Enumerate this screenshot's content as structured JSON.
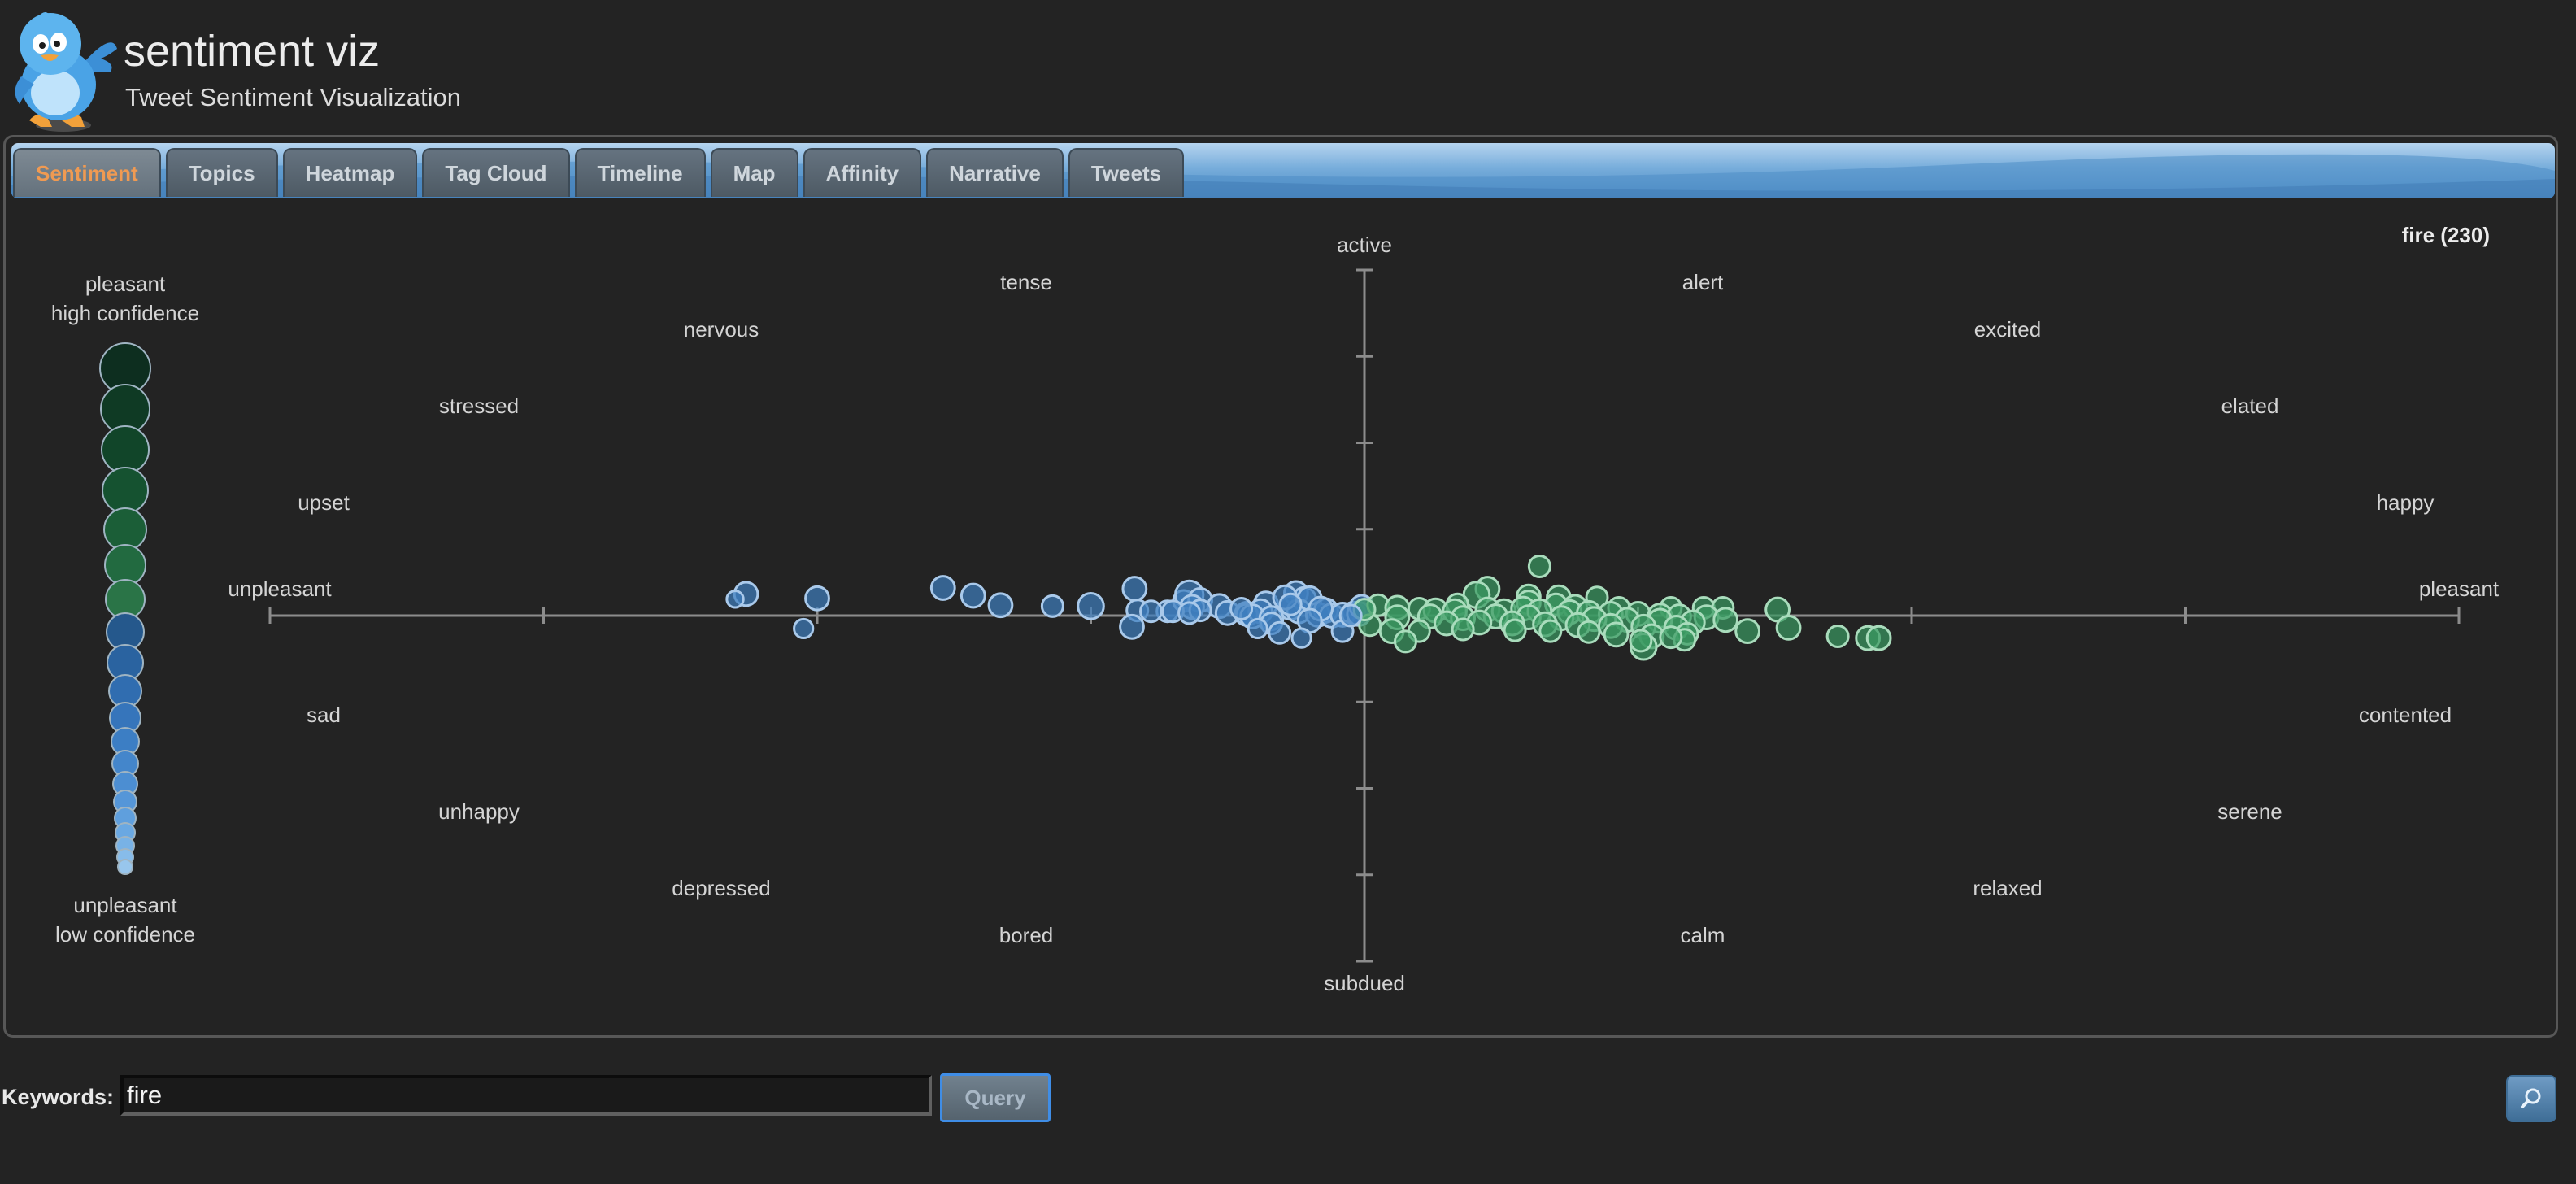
{
  "app": {
    "title": "sentiment viz",
    "subtitle": "Tweet Sentiment Visualization",
    "logo_icon": "twitter-bird-icon"
  },
  "tabs": [
    {
      "label": "Sentiment",
      "active": true
    },
    {
      "label": "Topics",
      "active": false
    },
    {
      "label": "Heatmap",
      "active": false
    },
    {
      "label": "Tag Cloud",
      "active": false
    },
    {
      "label": "Timeline",
      "active": false
    },
    {
      "label": "Map",
      "active": false
    },
    {
      "label": "Affinity",
      "active": false
    },
    {
      "label": "Narrative",
      "active": false
    },
    {
      "label": "Tweets",
      "active": false
    }
  ],
  "result_label": "fire (230)",
  "legend": {
    "top_line1": "pleasant",
    "top_line2": "high confidence",
    "bottom_line1": "unpleasant",
    "bottom_line2": "low confidence"
  },
  "circumplex": {
    "axis_top": "active",
    "axis_bottom": "subdued",
    "axis_left": "unpleasant",
    "axis_right": "pleasant",
    "terms": {
      "tense": "tense",
      "nervous": "nervous",
      "stressed": "stressed",
      "upset": "upset",
      "alert": "alert",
      "excited": "excited",
      "elated": "elated",
      "happy": "happy",
      "sad": "sad",
      "unhappy": "unhappy",
      "depressed": "depressed",
      "bored": "bored",
      "contented": "contented",
      "serene": "serene",
      "relaxed": "relaxed",
      "calm": "calm"
    }
  },
  "colors": {
    "background": "#232323",
    "unpleasant": "#3f7fbf",
    "pleasant": "#3a9a62",
    "active_tab_text": "#f09a52",
    "axis": "#8c8c8c"
  },
  "chart_data": {
    "type": "scatter",
    "title": "",
    "xlim": [
      1,
      9
    ],
    "ylim": [
      1,
      9
    ],
    "x_label_low": "unpleasant",
    "x_label_high": "pleasant",
    "y_label_low": "subdued",
    "y_label_high": "active",
    "count": 230,
    "note": "points sampled at visible resolution; pleasure (x) vs arousal (y), point size = confidence",
    "points": [
      {
        "x": 2.74,
        "y": 5.25,
        "size": 0.6
      },
      {
        "x": 2.7,
        "y": 5.19,
        "size": 0.3
      },
      {
        "x": 3.0,
        "y": 5.2,
        "size": 0.6
      },
      {
        "x": 3.46,
        "y": 5.32,
        "size": 0.6
      },
      {
        "x": 3.57,
        "y": 5.23,
        "size": 0.6
      },
      {
        "x": 3.67,
        "y": 5.12,
        "size": 0.6
      },
      {
        "x": 3.86,
        "y": 5.11,
        "size": 0.5
      },
      {
        "x": 4.0,
        "y": 5.11,
        "size": 0.7
      },
      {
        "x": 4.16,
        "y": 5.31,
        "size": 0.6
      },
      {
        "x": 4.17,
        "y": 5.06,
        "size": 0.5
      },
      {
        "x": 4.28,
        "y": 5.05,
        "size": 0.5
      },
      {
        "x": 4.34,
        "y": 5.17,
        "size": 0.5
      },
      {
        "x": 4.36,
        "y": 5.24,
        "size": 0.8
      },
      {
        "x": 4.4,
        "y": 5.18,
        "size": 0.6
      },
      {
        "x": 4.37,
        "y": 5.1,
        "size": 0.6
      },
      {
        "x": 4.47,
        "y": 5.11,
        "size": 0.6
      },
      {
        "x": 4.5,
        "y": 5.03,
        "size": 0.6
      },
      {
        "x": 4.57,
        "y": 5.02,
        "size": 0.6
      },
      {
        "x": 4.64,
        "y": 5.14,
        "size": 0.6
      },
      {
        "x": 4.57,
        "y": 5.01,
        "size": 0.5
      },
      {
        "x": 4.62,
        "y": 5.05,
        "size": 0.6
      },
      {
        "x": 4.59,
        "y": 4.99,
        "size": 0.6
      },
      {
        "x": 4.75,
        "y": 5.26,
        "size": 0.6
      },
      {
        "x": 4.78,
        "y": 5.19,
        "size": 0.6
      },
      {
        "x": 4.73,
        "y": 5.09,
        "size": 0.6
      },
      {
        "x": 4.76,
        "y": 5.05,
        "size": 0.6
      },
      {
        "x": 4.8,
        "y": 5.2,
        "size": 0.6
      },
      {
        "x": 4.83,
        "y": 5.01,
        "size": 0.6
      },
      {
        "x": 4.86,
        "y": 5.06,
        "size": 0.6
      },
      {
        "x": 4.88,
        "y": 5.0,
        "size": 0.6
      },
      {
        "x": 4.92,
        "y": 5.01,
        "size": 0.6
      },
      {
        "x": 4.96,
        "y": 5.02,
        "size": 0.6
      },
      {
        "x": 4.98,
        "y": 5.02,
        "size": 0.6
      },
      {
        "x": 4.99,
        "y": 5.1,
        "size": 0.6
      },
      {
        "x": 4.71,
        "y": 5.21,
        "size": 0.6
      },
      {
        "x": 4.84,
        "y": 5.08,
        "size": 0.6
      },
      {
        "x": 4.66,
        "y": 4.97,
        "size": 0.6
      },
      {
        "x": 4.8,
        "y": 4.94,
        "size": 0.6
      },
      {
        "x": 4.4,
        "y": 5.06,
        "size": 0.5
      },
      {
        "x": 4.3,
        "y": 5.05,
        "size": 0.5
      },
      {
        "x": 4.22,
        "y": 5.05,
        "size": 0.5
      },
      {
        "x": 4.36,
        "y": 5.03,
        "size": 0.5
      },
      {
        "x": 4.55,
        "y": 5.08,
        "size": 0.5
      },
      {
        "x": 2.95,
        "y": 4.85,
        "size": 0.4
      },
      {
        "x": 4.15,
        "y": 4.87,
        "size": 0.6
      },
      {
        "x": 4.66,
        "y": 4.91,
        "size": 0.5
      },
      {
        "x": 4.69,
        "y": 4.8,
        "size": 0.5
      },
      {
        "x": 4.92,
        "y": 4.82,
        "size": 0.5
      },
      {
        "x": 4.61,
        "y": 4.85,
        "size": 0.4
      },
      {
        "x": 4.77,
        "y": 4.74,
        "size": 0.4
      },
      {
        "x": 4.73,
        "y": 5.13,
        "size": 0.5
      },
      {
        "x": 5.64,
        "y": 5.57,
        "size": 0.5
      },
      {
        "x": 5.45,
        "y": 5.31,
        "size": 0.6
      },
      {
        "x": 5.41,
        "y": 5.24,
        "size": 0.7
      },
      {
        "x": 5.6,
        "y": 5.22,
        "size": 0.6
      },
      {
        "x": 5.71,
        "y": 5.21,
        "size": 0.6
      },
      {
        "x": 5.85,
        "y": 5.21,
        "size": 0.5
      },
      {
        "x": 5.34,
        "y": 5.13,
        "size": 0.5
      },
      {
        "x": 5.6,
        "y": 5.15,
        "size": 0.6
      },
      {
        "x": 5.7,
        "y": 5.13,
        "size": 0.5
      },
      {
        "x": 5.77,
        "y": 5.1,
        "size": 0.6
      },
      {
        "x": 5.93,
        "y": 5.09,
        "size": 0.5
      },
      {
        "x": 6.12,
        "y": 5.09,
        "size": 0.5
      },
      {
        "x": 6.24,
        "y": 5.09,
        "size": 0.5
      },
      {
        "x": 6.31,
        "y": 5.09,
        "size": 0.5
      },
      {
        "x": 6.51,
        "y": 5.07,
        "size": 0.6
      },
      {
        "x": 5.05,
        "y": 5.12,
        "size": 0.5
      },
      {
        "x": 5.12,
        "y": 5.09,
        "size": 0.6
      },
      {
        "x": 5.2,
        "y": 5.08,
        "size": 0.5
      },
      {
        "x": 5.26,
        "y": 5.06,
        "size": 0.6
      },
      {
        "x": 5.33,
        "y": 5.05,
        "size": 0.6
      },
      {
        "x": 5.45,
        "y": 5.07,
        "size": 0.6
      },
      {
        "x": 5.51,
        "y": 5.05,
        "size": 0.6
      },
      {
        "x": 5.58,
        "y": 5.08,
        "size": 0.6
      },
      {
        "x": 5.64,
        "y": 5.05,
        "size": 0.6
      },
      {
        "x": 5.75,
        "y": 5.04,
        "size": 0.6
      },
      {
        "x": 5.82,
        "y": 5.03,
        "size": 0.6
      },
      {
        "x": 5.9,
        "y": 5.02,
        "size": 0.6
      },
      {
        "x": 6.0,
        "y": 5.02,
        "size": 0.6
      },
      {
        "x": 6.08,
        "y": 5.0,
        "size": 0.6
      },
      {
        "x": 6.15,
        "y": 4.99,
        "size": 0.6
      },
      {
        "x": 6.25,
        "y": 4.98,
        "size": 0.6
      },
      {
        "x": 5.12,
        "y": 4.98,
        "size": 0.6
      },
      {
        "x": 5.24,
        "y": 4.99,
        "size": 0.6
      },
      {
        "x": 5.36,
        "y": 4.97,
        "size": 0.6
      },
      {
        "x": 5.48,
        "y": 4.99,
        "size": 0.6
      },
      {
        "x": 5.6,
        "y": 4.98,
        "size": 0.6
      },
      {
        "x": 5.72,
        "y": 4.97,
        "size": 0.6
      },
      {
        "x": 5.84,
        "y": 4.96,
        "size": 0.6
      },
      {
        "x": 5.96,
        "y": 4.95,
        "size": 0.6
      },
      {
        "x": 6.08,
        "y": 4.94,
        "size": 0.6
      },
      {
        "x": 6.2,
        "y": 4.92,
        "size": 0.6
      },
      {
        "x": 6.32,
        "y": 4.95,
        "size": 0.6
      },
      {
        "x": 5.3,
        "y": 4.91,
        "size": 0.6
      },
      {
        "x": 5.42,
        "y": 4.92,
        "size": 0.6
      },
      {
        "x": 5.54,
        "y": 4.91,
        "size": 0.6
      },
      {
        "x": 5.66,
        "y": 4.9,
        "size": 0.6
      },
      {
        "x": 5.78,
        "y": 4.89,
        "size": 0.6
      },
      {
        "x": 5.9,
        "y": 4.88,
        "size": 0.6
      },
      {
        "x": 6.02,
        "y": 4.87,
        "size": 0.6
      },
      {
        "x": 6.14,
        "y": 4.86,
        "size": 0.6
      },
      {
        "x": 5.02,
        "y": 4.89,
        "size": 0.5
      },
      {
        "x": 5.1,
        "y": 4.82,
        "size": 0.6
      },
      {
        "x": 5.2,
        "y": 4.82,
        "size": 0.5
      },
      {
        "x": 5.36,
        "y": 4.84,
        "size": 0.5
      },
      {
        "x": 5.55,
        "y": 4.83,
        "size": 0.5
      },
      {
        "x": 5.68,
        "y": 4.82,
        "size": 0.5
      },
      {
        "x": 5.82,
        "y": 4.81,
        "size": 0.5
      },
      {
        "x": 5.92,
        "y": 4.78,
        "size": 0.6
      },
      {
        "x": 6.05,
        "y": 4.76,
        "size": 0.6
      },
      {
        "x": 6.18,
        "y": 4.79,
        "size": 0.5
      },
      {
        "x": 6.4,
        "y": 4.82,
        "size": 0.6
      },
      {
        "x": 6.55,
        "y": 4.86,
        "size": 0.6
      },
      {
        "x": 6.73,
        "y": 4.76,
        "size": 0.5
      },
      {
        "x": 6.84,
        "y": 4.74,
        "size": 0.6
      },
      {
        "x": 6.88,
        "y": 4.74,
        "size": 0.6
      },
      {
        "x": 6.02,
        "y": 4.64,
        "size": 0.7
      },
      {
        "x": 6.17,
        "y": 4.72,
        "size": 0.5
      },
      {
        "x": 6.12,
        "y": 4.75,
        "size": 0.5
      },
      {
        "x": 6.01,
        "y": 4.71,
        "size": 0.5
      },
      {
        "x": 5.15,
        "y": 4.7,
        "size": 0.5
      },
      {
        "x": 5.0,
        "y": 5.07,
        "size": 0.5
      },
      {
        "x": 4.95,
        "y": 5.0,
        "size": 0.5
      }
    ]
  }
}
